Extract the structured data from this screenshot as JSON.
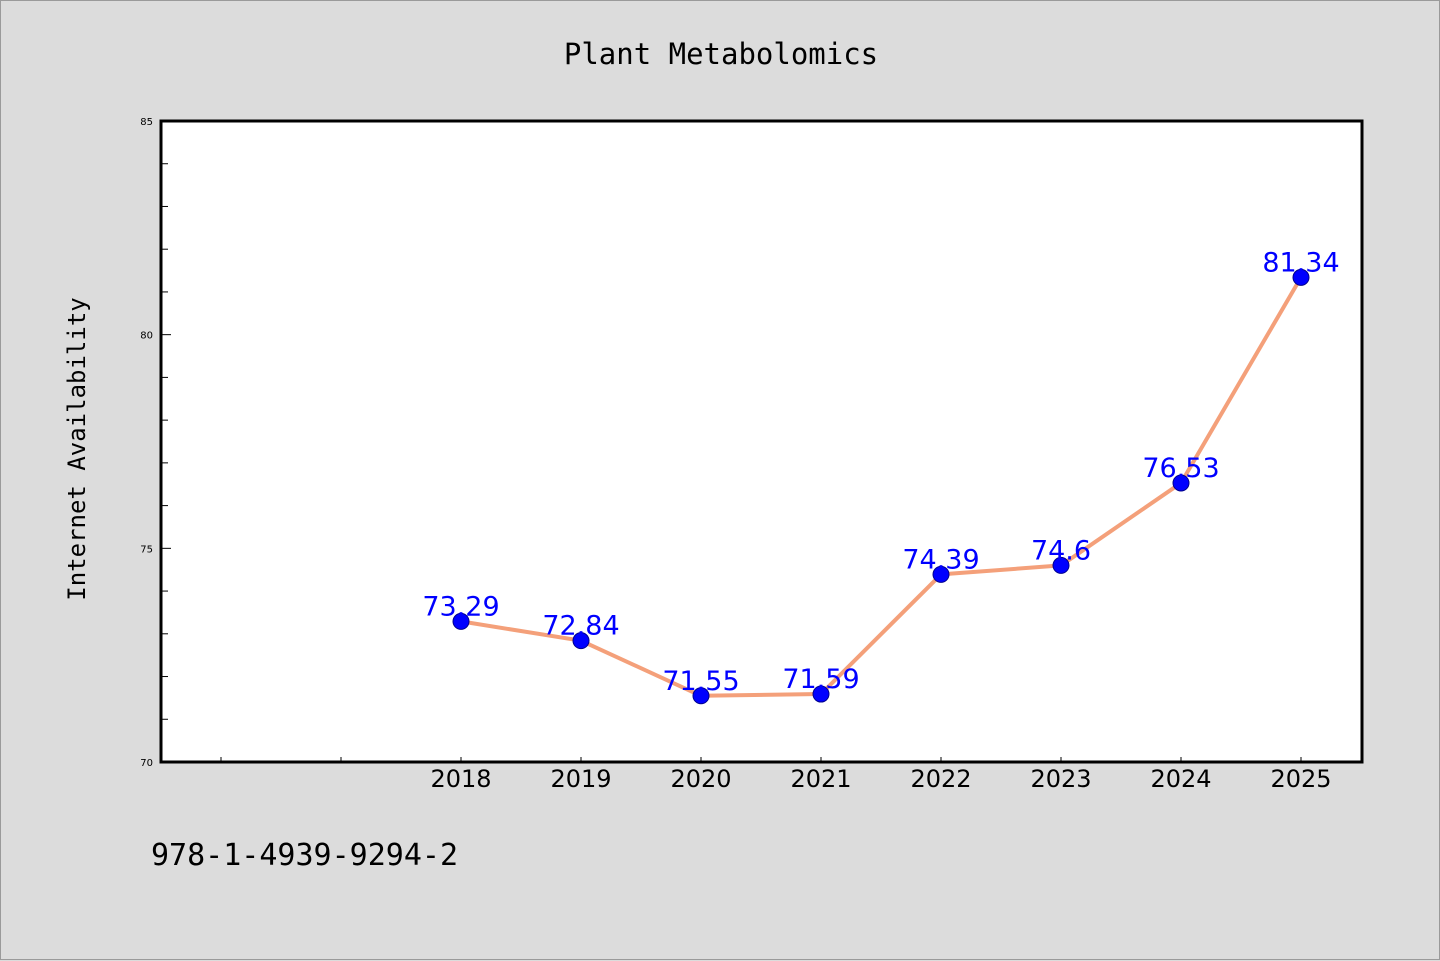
{
  "colors": {
    "background": "#dcdcdc",
    "plot_background": "#ffffff",
    "line": "#f4a07a",
    "marker": "#0000ff",
    "data_label": "#0000ff"
  },
  "footer": {
    "isbn": "978-1-4939-9294-2"
  },
  "chart_data": {
    "type": "line",
    "title": "Plant Metabolomics",
    "xlabel": "",
    "ylabel": "Internet Availability",
    "categories": [
      "2018",
      "2019",
      "2020",
      "2021",
      "2022",
      "2023",
      "2024",
      "2025"
    ],
    "series": [
      {
        "values": [
          73.29,
          72.84,
          71.55,
          71.59,
          74.39,
          74.6,
          76.53,
          81.34
        ],
        "labels": [
          "73.29",
          "72.84",
          "71.55",
          "71.59",
          "74.39",
          "74.6",
          "76.53",
          "81.34"
        ]
      }
    ],
    "ylim": [
      70,
      85
    ],
    "yticks": [
      "70",
      "75",
      "80",
      "85"
    ],
    "grid": false,
    "legend": "none"
  }
}
